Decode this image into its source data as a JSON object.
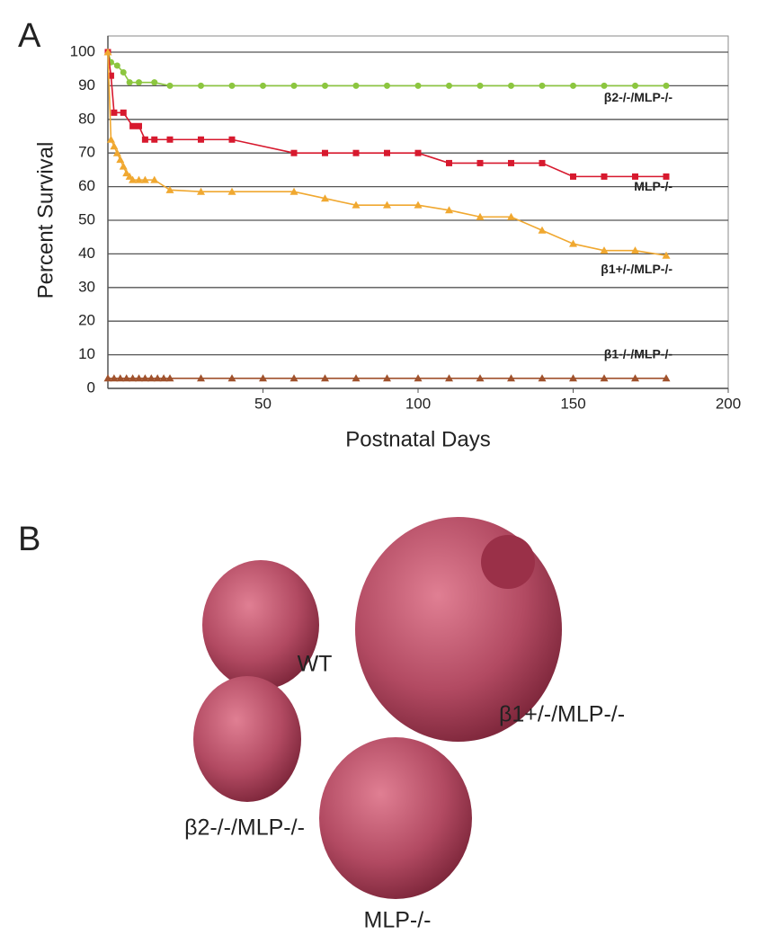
{
  "panels": {
    "a": "A",
    "b": "B"
  },
  "chart_data": {
    "type": "line",
    "xlabel": "Postnatal Days",
    "ylabel": "Percent Survival",
    "xlim": [
      0,
      200
    ],
    "xticks": [
      50,
      100,
      150,
      200
    ],
    "ylim": [
      0,
      100
    ],
    "yticks": [
      0,
      10,
      20,
      30,
      40,
      50,
      60,
      70,
      80,
      90,
      100
    ],
    "grid": true,
    "series": [
      {
        "name": "β2-/-/MLP-/-",
        "color": "#8cc63f",
        "marker": "circle",
        "x": [
          0,
          1,
          3,
          5,
          7,
          10,
          15,
          20,
          30,
          40,
          50,
          60,
          70,
          80,
          90,
          100,
          110,
          120,
          130,
          140,
          150,
          160,
          170,
          180
        ],
        "values": [
          100,
          97,
          96,
          94,
          91,
          91,
          91,
          90,
          90,
          90,
          90,
          90,
          90,
          90,
          90,
          90,
          90,
          90,
          90,
          90,
          90,
          90,
          90,
          90
        ]
      },
      {
        "name": "MLP-/-",
        "color": "#d7192e",
        "marker": "square",
        "x": [
          0,
          1,
          2,
          5,
          8,
          10,
          12,
          15,
          20,
          30,
          40,
          60,
          70,
          80,
          90,
          100,
          110,
          120,
          130,
          140,
          150,
          160,
          170,
          180
        ],
        "values": [
          100,
          93,
          82,
          82,
          78,
          78,
          74,
          74,
          74,
          74,
          74,
          70,
          70,
          70,
          70,
          70,
          67,
          67,
          67,
          67,
          63,
          63,
          63,
          63
        ]
      },
      {
        "name": "β1+/-/MLP-/-",
        "color": "#f0a830",
        "marker": "triangle",
        "x": [
          0,
          1,
          2,
          3,
          4,
          5,
          6,
          7,
          8,
          10,
          12,
          15,
          20,
          30,
          40,
          60,
          70,
          80,
          90,
          100,
          110,
          120,
          130,
          140,
          150,
          160,
          170,
          180
        ],
        "values": [
          100,
          74,
          72,
          70,
          68,
          66,
          64,
          63,
          62,
          62,
          62,
          62,
          59,
          58.5,
          58.5,
          58.5,
          56.5,
          54.5,
          54.5,
          54.5,
          53,
          51,
          51,
          47,
          43,
          41,
          41,
          39.5
        ]
      },
      {
        "name": "β1-/-/MLP-/-",
        "color": "#a0522d",
        "marker": "triangle",
        "x": [
          0,
          2,
          4,
          6,
          8,
          10,
          12,
          14,
          16,
          18,
          20,
          30,
          40,
          50,
          60,
          70,
          80,
          90,
          100,
          110,
          120,
          130,
          140,
          150,
          160,
          170,
          180
        ],
        "values": [
          3,
          3,
          3,
          3,
          3,
          3,
          3,
          3,
          3,
          3,
          3,
          3,
          3,
          3,
          3,
          3,
          3,
          3,
          3,
          3,
          3,
          3,
          3,
          3,
          3,
          3,
          3
        ]
      }
    ]
  },
  "photo": {
    "labels": [
      "WT",
      "β1+/-/MLP-/-",
      "β2-/-/MLP-/-",
      "MLP-/-"
    ]
  }
}
